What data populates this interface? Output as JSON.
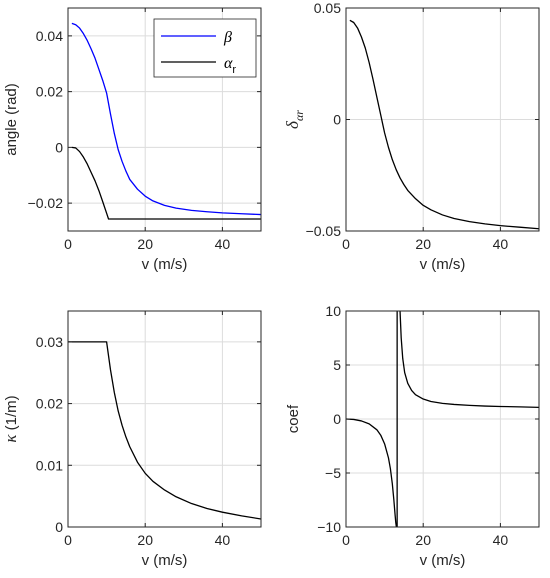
{
  "chart_data": [
    {
      "id": "p1",
      "type": "line",
      "xlabel": "v (m/s)",
      "ylabel": "angle (rad)",
      "xlim": [
        0,
        50
      ],
      "ylim": [
        -0.03,
        0.05
      ],
      "xticks": [
        0,
        20,
        40
      ],
      "xtick_labels": [
        "0",
        "20",
        "40"
      ],
      "yticks": [
        -0.02,
        0,
        0.02,
        0.04
      ],
      "ytick_labels": [
        "−0.02",
        "0",
        "0.02",
        "0.04"
      ],
      "grid": true,
      "legend": "top-right",
      "series": [
        {
          "name": "β",
          "color": "#0000ff",
          "x": [
            1,
            2,
            3,
            4,
            5,
            6,
            7,
            8,
            9,
            10,
            11,
            12,
            13,
            14,
            15,
            16,
            18,
            20,
            22,
            25,
            28,
            32,
            36,
            40,
            45,
            50
          ],
          "y": [
            0.0445,
            0.044,
            0.0428,
            0.0408,
            0.0383,
            0.0353,
            0.032,
            0.028,
            0.024,
            0.0195,
            0.012,
            0.005,
            -0.0008,
            -0.005,
            -0.0085,
            -0.0115,
            -0.015,
            -0.0175,
            -0.0192,
            -0.0208,
            -0.0218,
            -0.0226,
            -0.0231,
            -0.0235,
            -0.0238,
            -0.0241
          ]
        },
        {
          "name": "αr",
          "name_main": "α",
          "name_sub": "r",
          "color": "#000000",
          "x": [
            1,
            2,
            3,
            4,
            5,
            6,
            7,
            8,
            9,
            10,
            10.5,
            15,
            20,
            30,
            40,
            50
          ],
          "y": [
            0.0,
            -0.0002,
            -0.0015,
            -0.0035,
            -0.006,
            -0.009,
            -0.012,
            -0.0155,
            -0.0195,
            -0.0236,
            -0.0257,
            -0.0257,
            -0.0257,
            -0.0257,
            -0.0257,
            -0.0257
          ]
        }
      ]
    },
    {
      "id": "p2",
      "type": "line",
      "xlabel": "v (m/s)",
      "ylabel_main": "δ",
      "ylabel_sub": "αr",
      "xlim": [
        0,
        50
      ],
      "ylim": [
        -0.05,
        0.05
      ],
      "xticks": [
        0,
        20,
        40
      ],
      "xtick_labels": [
        "0",
        "20",
        "40"
      ],
      "yticks": [
        -0.05,
        0,
        0.05
      ],
      "ytick_labels": [
        "−0.05",
        "0",
        "0.05"
      ],
      "grid": true,
      "series": [
        {
          "color": "#000000",
          "x": [
            1,
            2,
            3,
            4,
            5,
            6,
            7,
            8,
            9,
            10,
            11,
            12,
            13,
            14,
            15,
            16,
            18,
            20,
            22,
            25,
            28,
            32,
            36,
            40,
            45,
            50
          ],
          "y": [
            0.0445,
            0.0435,
            0.041,
            0.037,
            0.032,
            0.0255,
            0.018,
            0.01,
            0.002,
            -0.006,
            -0.0125,
            -0.018,
            -0.0225,
            -0.0262,
            -0.0292,
            -0.0318,
            -0.0355,
            -0.0385,
            -0.0405,
            -0.0428,
            -0.0444,
            -0.0458,
            -0.0468,
            -0.0476,
            -0.0483,
            -0.049
          ]
        }
      ]
    },
    {
      "id": "p3",
      "type": "line",
      "xlabel": "v (m/s)",
      "ylabel_main": "κ",
      "ylabel_rest": " (1/m)",
      "xlim": [
        0,
        50
      ],
      "ylim": [
        0,
        0.035
      ],
      "xticks": [
        0,
        20,
        40
      ],
      "xtick_labels": [
        "0",
        "20",
        "40"
      ],
      "yticks": [
        0,
        0.01,
        0.02,
        0.03
      ],
      "ytick_labels": [
        "0",
        "0.01",
        "0.02",
        "0.03"
      ],
      "grid": true,
      "series": [
        {
          "color": "#000000",
          "x": [
            0,
            5,
            10,
            11,
            12,
            13,
            14,
            15,
            16,
            18,
            20,
            22,
            25,
            28,
            32,
            36,
            40,
            45,
            50
          ],
          "y": [
            0.03,
            0.03,
            0.03,
            0.0255,
            0.0218,
            0.0188,
            0.0165,
            0.0146,
            0.013,
            0.0105,
            0.0087,
            0.0074,
            0.006,
            0.0049,
            0.0038,
            0.003,
            0.0024,
            0.0018,
            0.0013
          ]
        }
      ]
    },
    {
      "id": "p4",
      "type": "line",
      "xlabel": "v (m/s)",
      "ylabel": "coef",
      "xlim": [
        0,
        50
      ],
      "ylim": [
        -10,
        10
      ],
      "xticks": [
        0,
        20,
        40
      ],
      "xtick_labels": [
        "0",
        "20",
        "40"
      ],
      "yticks": [
        -10,
        -5,
        0,
        5,
        10
      ],
      "ytick_labels": [
        "−10",
        "−5",
        "0",
        "5",
        "10"
      ],
      "grid": true,
      "series": [
        {
          "color": "#000000",
          "segments": [
            {
              "x": [
                0,
                2,
                4,
                6,
                8,
                9,
                10,
                11,
                11.5,
                12,
                12.4,
                12.7,
                12.9,
                13.05
              ],
              "y": [
                0.0,
                -0.04,
                -0.18,
                -0.45,
                -1.0,
                -1.5,
                -2.3,
                -3.6,
                -4.6,
                -6.0,
                -7.5,
                -8.8,
                -9.6,
                -10
              ]
            },
            {
              "x": [
                13.25,
                13.25
              ],
              "y": [
                -10,
                10
              ]
            },
            {
              "x": [
                14.0,
                14.3,
                14.7,
                15.2,
                16,
                17,
                18,
                20,
                22,
                25,
                28,
                32,
                36,
                40,
                45,
                50
              ],
              "y": [
                10,
                7.5,
                5.6,
                4.3,
                3.3,
                2.65,
                2.25,
                1.85,
                1.62,
                1.45,
                1.35,
                1.26,
                1.2,
                1.16,
                1.12,
                1.08
              ]
            }
          ]
        }
      ]
    }
  ]
}
